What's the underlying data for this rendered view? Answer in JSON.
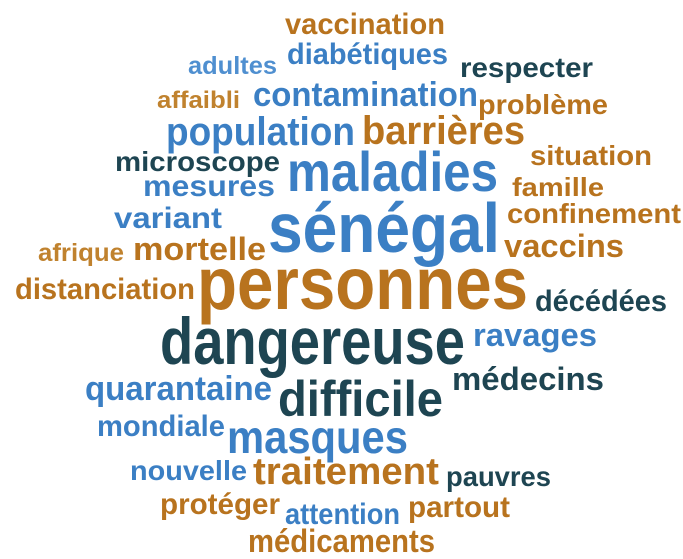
{
  "words": [
    {
      "text": "vaccination",
      "color": "#b8731e"
    },
    {
      "text": "diabétiques",
      "color": "#3b7fc4"
    },
    {
      "text": "adultes",
      "color": "#4f8fd0"
    },
    {
      "text": "respecter",
      "color": "#1e4552"
    },
    {
      "text": "affaibli",
      "color": "#c0822e"
    },
    {
      "text": "contamination",
      "color": "#3b7fc4"
    },
    {
      "text": "problème",
      "color": "#b8731e"
    },
    {
      "text": "population",
      "color": "#3b7fc4"
    },
    {
      "text": "barrières",
      "color": "#b8731e"
    },
    {
      "text": "microscope",
      "color": "#1e4552"
    },
    {
      "text": "situation",
      "color": "#b8731e"
    },
    {
      "text": "maladies",
      "color": "#3b7fc4"
    },
    {
      "text": "mesures",
      "color": "#3b7fc4"
    },
    {
      "text": "famille",
      "color": "#b8731e"
    },
    {
      "text": "variant",
      "color": "#3b7fc4"
    },
    {
      "text": "confinement",
      "color": "#b8731e"
    },
    {
      "text": "sénégal",
      "color": "#3b7fc4"
    },
    {
      "text": "afrique",
      "color": "#c0822e"
    },
    {
      "text": "mortelle",
      "color": "#b8731e"
    },
    {
      "text": "vaccins",
      "color": "#b8731e"
    },
    {
      "text": "distanciation",
      "color": "#b8731e"
    },
    {
      "text": "personnes",
      "color": "#b8731e"
    },
    {
      "text": "décédées",
      "color": "#1e4552"
    },
    {
      "text": "dangereuse",
      "color": "#1e4552"
    },
    {
      "text": "ravages",
      "color": "#3b7fc4"
    },
    {
      "text": "quarantaine",
      "color": "#3b7fc4"
    },
    {
      "text": "difficile",
      "color": "#1e4552"
    },
    {
      "text": "médecins",
      "color": "#1e4552"
    },
    {
      "text": "mondiale",
      "color": "#3b7fc4"
    },
    {
      "text": "masques",
      "color": "#3b7fc4"
    },
    {
      "text": "nouvelle",
      "color": "#3b7fc4"
    },
    {
      "text": "traitement",
      "color": "#b8731e"
    },
    {
      "text": "pauvres",
      "color": "#1e4552"
    },
    {
      "text": "protéger",
      "color": "#b8731e"
    },
    {
      "text": "attention",
      "color": "#3b7fc4"
    },
    {
      "text": "partout",
      "color": "#b8731e"
    },
    {
      "text": "médicaments",
      "color": "#b8731e"
    }
  ]
}
